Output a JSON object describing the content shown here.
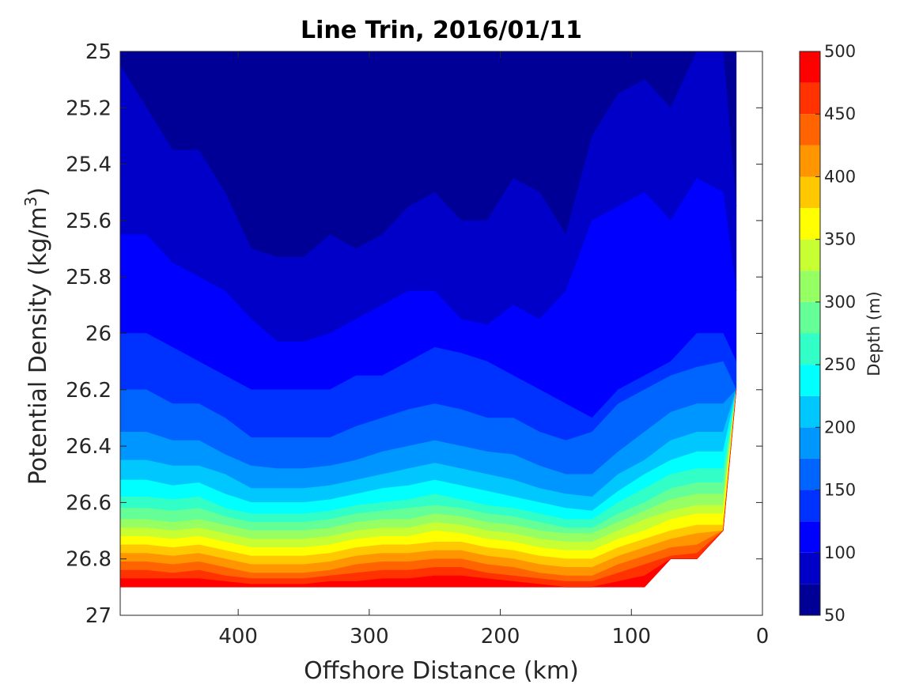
{
  "chart_data": {
    "type": "heatmap",
    "subtype": "filled-contour",
    "title": "Line Trin, 2016/01/11",
    "xlabel": "Offshore Distance (km)",
    "ylabel": "Potential Density (kg/m",
    "ylabel_sup": "3",
    "ylabel_close": ")",
    "xlim": [
      490,
      0
    ],
    "x_reversed": true,
    "ylim": [
      25,
      27
    ],
    "y_reversed": true,
    "xticks": [
      400,
      300,
      200,
      100,
      0
    ],
    "xtick_labels": [
      "400",
      "300",
      "200",
      "100",
      "0"
    ],
    "yticks": [
      25,
      25.2,
      25.4,
      25.6,
      25.8,
      26,
      26.2,
      26.4,
      26.6,
      26.8,
      27
    ],
    "ytick_labels": [
      "25",
      "25.2",
      "25.4",
      "25.6",
      "25.8",
      "26",
      "26.2",
      "26.4",
      "26.6",
      "26.8",
      "27"
    ],
    "colorbar": {
      "label": "Depth (m)",
      "range": [
        50,
        500
      ],
      "level_step": 25,
      "ticks": [
        50,
        100,
        150,
        200,
        250,
        300,
        350,
        400,
        450,
        500
      ],
      "tick_labels": [
        "50",
        "100",
        "150",
        "200",
        "250",
        "300",
        "350",
        "400",
        "450",
        "500"
      ],
      "colormap": "jet",
      "colors": [
        "#000096",
        "#0000c8",
        "#0000ff",
        "#0032ff",
        "#0064ff",
        "#0096ff",
        "#00c8ff",
        "#00ffff",
        "#32ffc8",
        "#64ff96",
        "#96ff64",
        "#c8ff32",
        "#ffff00",
        "#ffc800",
        "#ff9600",
        "#ff6400",
        "#ff3200",
        "#ff0000",
        "#c80000"
      ]
    },
    "contour_levels": [
      75,
      100,
      125,
      150,
      175,
      200,
      225,
      250,
      275,
      300,
      325,
      350,
      375,
      400,
      425,
      450,
      475
    ],
    "x": [
      490,
      470,
      450,
      430,
      410,
      390,
      370,
      350,
      330,
      310,
      290,
      270,
      250,
      230,
      210,
      190,
      170,
      150,
      130,
      110,
      90,
      70,
      50,
      30,
      20
    ],
    "bottom_density": [
      26.9,
      26.9,
      26.9,
      26.9,
      26.9,
      26.9,
      26.9,
      26.9,
      26.9,
      26.9,
      26.9,
      26.9,
      26.9,
      26.9,
      26.9,
      26.9,
      26.9,
      26.9,
      26.9,
      26.9,
      26.9,
      26.8,
      26.8,
      26.7,
      26.2
    ],
    "contours": [
      {
        "level": 75,
        "density": [
          25.05,
          25.2,
          25.35,
          25.35,
          25.5,
          25.7,
          25.73,
          25.73,
          25.65,
          25.7,
          25.65,
          25.55,
          25.5,
          25.6,
          25.6,
          25.45,
          25.5,
          25.65,
          25.3,
          25.15,
          25.1,
          25.2,
          25.0,
          25.0,
          25.55
        ]
      },
      {
        "level": 100,
        "density": [
          25.65,
          25.65,
          25.75,
          25.8,
          25.85,
          25.95,
          26.03,
          26.03,
          26.0,
          25.95,
          25.9,
          25.85,
          25.85,
          25.95,
          25.97,
          25.9,
          25.95,
          25.85,
          25.6,
          25.55,
          25.5,
          25.6,
          25.45,
          25.5,
          25.85
        ]
      },
      {
        "level": 125,
        "density": [
          26.0,
          26.0,
          26.05,
          26.1,
          26.15,
          26.2,
          26.2,
          26.2,
          26.2,
          26.15,
          26.15,
          26.1,
          26.05,
          26.07,
          26.1,
          26.15,
          26.2,
          26.25,
          26.3,
          26.2,
          26.15,
          26.1,
          26.0,
          26.0,
          26.1
        ]
      },
      {
        "level": 150,
        "density": [
          26.2,
          26.2,
          26.25,
          26.25,
          26.3,
          26.37,
          26.37,
          26.37,
          26.37,
          26.33,
          26.3,
          26.27,
          26.25,
          26.27,
          26.3,
          26.3,
          26.35,
          26.38,
          26.35,
          26.25,
          26.2,
          26.15,
          26.12,
          26.1,
          26.2
        ]
      },
      {
        "level": 175,
        "density": [
          26.35,
          26.35,
          26.38,
          26.38,
          26.43,
          26.47,
          26.48,
          26.48,
          26.47,
          26.45,
          26.42,
          26.4,
          26.38,
          26.4,
          26.42,
          26.43,
          26.47,
          26.5,
          26.5,
          26.42,
          26.35,
          26.28,
          26.25,
          26.25,
          26.3
        ]
      },
      {
        "level": 200,
        "density": [
          26.45,
          26.45,
          26.47,
          26.47,
          26.5,
          26.55,
          26.55,
          26.55,
          26.54,
          26.52,
          26.5,
          26.48,
          26.46,
          26.48,
          26.5,
          26.52,
          26.55,
          26.57,
          26.58,
          26.5,
          26.45,
          26.38,
          26.35,
          26.35,
          26.35
        ]
      },
      {
        "level": 225,
        "density": [
          26.52,
          26.52,
          26.54,
          26.53,
          26.57,
          26.6,
          26.6,
          26.6,
          26.59,
          26.57,
          26.55,
          26.54,
          26.52,
          26.54,
          26.56,
          26.58,
          26.6,
          26.62,
          26.63,
          26.56,
          26.5,
          26.45,
          26.42,
          26.42,
          26.42
        ]
      },
      {
        "level": 250,
        "density": [
          26.58,
          26.58,
          26.59,
          26.58,
          26.62,
          26.64,
          26.64,
          26.64,
          26.63,
          26.61,
          26.6,
          26.59,
          26.57,
          26.59,
          26.61,
          26.62,
          26.64,
          26.66,
          26.66,
          26.6,
          26.55,
          26.5,
          26.48,
          26.48,
          26.48
        ]
      },
      {
        "level": 275,
        "density": [
          26.62,
          26.62,
          26.63,
          26.62,
          26.65,
          26.67,
          26.67,
          26.67,
          26.66,
          26.64,
          26.63,
          26.62,
          26.61,
          26.62,
          26.64,
          26.65,
          26.67,
          26.69,
          26.69,
          26.64,
          26.6,
          26.55,
          26.53,
          26.53,
          26.53
        ]
      },
      {
        "level": 300,
        "density": [
          26.66,
          26.66,
          26.67,
          26.66,
          26.68,
          26.7,
          26.7,
          26.7,
          26.69,
          26.67,
          26.66,
          26.66,
          26.64,
          26.65,
          26.67,
          26.68,
          26.7,
          26.71,
          26.71,
          26.67,
          26.63,
          26.59,
          26.57,
          26.57,
          26.57
        ]
      },
      {
        "level": 325,
        "density": [
          26.69,
          26.69,
          26.7,
          26.69,
          26.71,
          26.73,
          26.73,
          26.73,
          26.72,
          26.7,
          26.69,
          26.69,
          26.67,
          26.68,
          26.7,
          26.71,
          26.73,
          26.74,
          26.74,
          26.7,
          26.66,
          26.63,
          26.61,
          26.61,
          26.61
        ]
      },
      {
        "level": 350,
        "density": [
          26.72,
          26.72,
          26.73,
          26.72,
          26.74,
          26.76,
          26.76,
          26.76,
          26.75,
          26.73,
          26.72,
          26.72,
          26.7,
          26.71,
          26.73,
          26.74,
          26.76,
          26.77,
          26.77,
          26.73,
          26.7,
          26.66,
          26.64,
          26.64,
          26.64
        ]
      },
      {
        "level": 375,
        "density": [
          26.75,
          26.75,
          26.76,
          26.75,
          26.77,
          26.79,
          26.79,
          26.79,
          26.78,
          26.76,
          26.75,
          26.75,
          26.74,
          26.74,
          26.76,
          26.77,
          26.79,
          26.8,
          26.8,
          26.76,
          26.73,
          26.7,
          26.68,
          26.68,
          26.68
        ]
      },
      {
        "level": 400,
        "density": [
          26.78,
          26.78,
          26.79,
          26.78,
          26.8,
          26.82,
          26.82,
          26.82,
          26.81,
          26.79,
          26.78,
          26.78,
          26.77,
          26.77,
          26.79,
          26.8,
          26.82,
          26.83,
          26.83,
          26.79,
          26.76,
          26.73,
          26.71,
          26.71,
          26.71
        ]
      },
      {
        "level": 425,
        "density": [
          26.81,
          26.81,
          26.82,
          26.81,
          26.83,
          26.85,
          26.85,
          26.85,
          26.84,
          26.82,
          26.81,
          26.81,
          26.8,
          26.8,
          26.82,
          26.83,
          26.85,
          26.86,
          26.86,
          26.82,
          26.79,
          26.76,
          26.75,
          26.75,
          26.75
        ]
      },
      {
        "level": 450,
        "density": [
          26.84,
          26.84,
          26.85,
          26.84,
          26.86,
          26.87,
          26.87,
          26.87,
          26.86,
          26.85,
          26.84,
          26.84,
          26.83,
          26.83,
          26.85,
          26.86,
          26.87,
          26.88,
          26.88,
          26.85,
          26.82,
          26.79,
          26.78,
          26.78,
          26.78
        ]
      },
      {
        "level": 475,
        "density": [
          26.87,
          26.87,
          26.87,
          26.87,
          26.88,
          26.89,
          26.89,
          26.89,
          26.88,
          26.88,
          26.87,
          26.87,
          26.86,
          26.86,
          26.87,
          26.88,
          26.89,
          26.9,
          26.9,
          26.88,
          26.86,
          26.81,
          26.8,
          26.8,
          26.8
        ]
      }
    ]
  }
}
